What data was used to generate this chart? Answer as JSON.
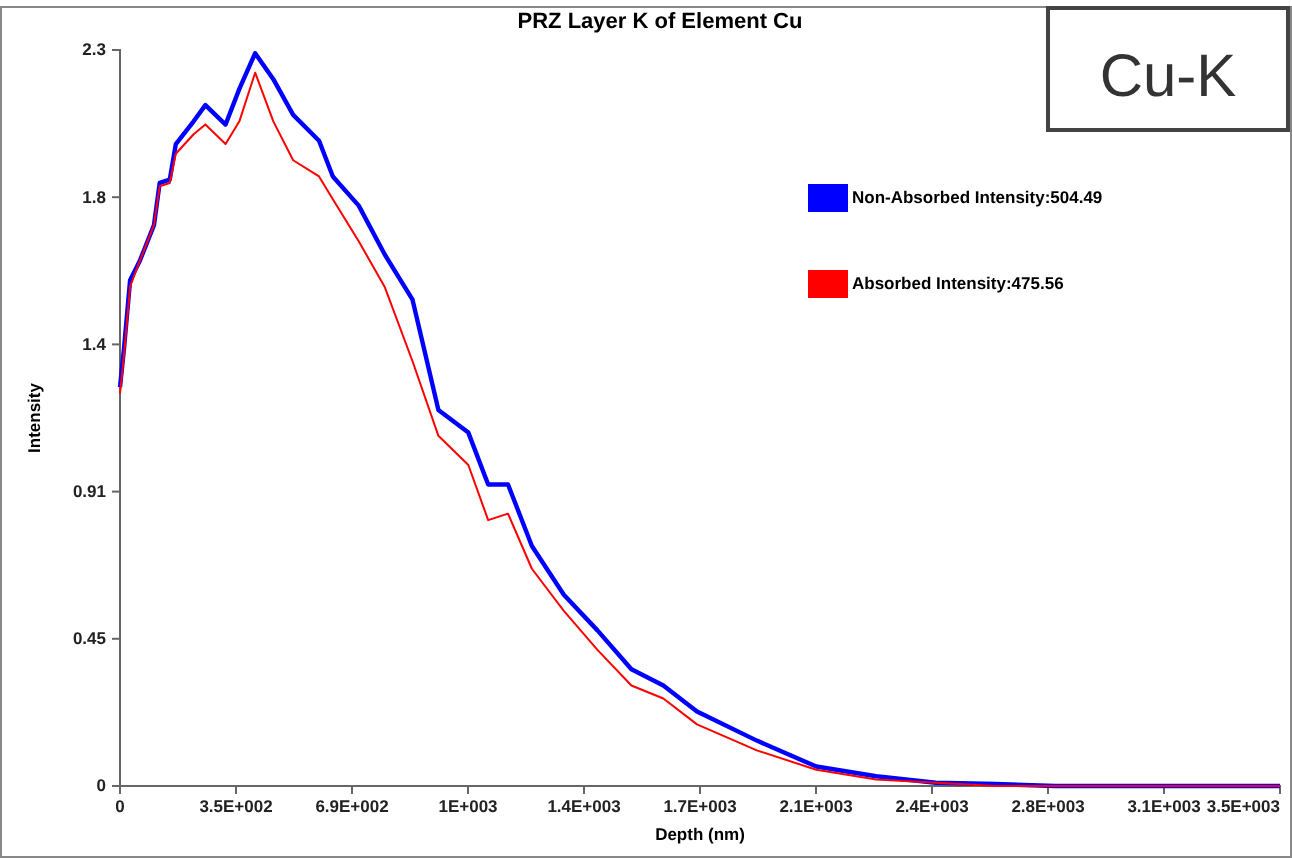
{
  "chart_data": {
    "type": "line",
    "title": "PRZ Layer K of Element Cu",
    "xlabel": "Depth (nm)",
    "ylabel": "Intensity",
    "x": [
      0,
      12,
      30,
      59,
      101,
      118,
      148,
      166,
      219,
      254,
      314,
      355,
      402,
      456,
      515,
      592,
      633,
      710,
      787,
      870,
      947,
      1036,
      1095,
      1154,
      1225,
      1320,
      1420,
      1521,
      1616,
      1716,
      1894,
      2071,
      2249,
      2426,
      2604,
      2781,
      3450
    ],
    "series": [
      {
        "name": "Non-Absorbed Intensity:504.49",
        "color": "#0000ff",
        "values": [
          1.23,
          1.35,
          1.56,
          1.62,
          1.73,
          1.86,
          1.87,
          1.98,
          2.05,
          2.1,
          2.04,
          2.15,
          2.26,
          2.18,
          2.07,
          1.99,
          1.88,
          1.79,
          1.64,
          1.5,
          1.16,
          1.09,
          0.93,
          0.93,
          0.74,
          0.59,
          0.48,
          0.36,
          0.31,
          0.23,
          0.14,
          0.06,
          0.03,
          0.01,
          0.006,
          0,
          0
        ]
      },
      {
        "name": "Absorbed Intensity:475.56",
        "color": "#ff0000",
        "values": [
          1.21,
          1.33,
          1.54,
          1.62,
          1.73,
          1.85,
          1.86,
          1.95,
          2.01,
          2.04,
          1.98,
          2.05,
          2.2,
          2.05,
          1.93,
          1.88,
          1.81,
          1.68,
          1.54,
          1.31,
          1.08,
          0.99,
          0.82,
          0.84,
          0.67,
          0.54,
          0.42,
          0.31,
          0.27,
          0.19,
          0.11,
          0.05,
          0.02,
          0.01,
          0,
          0,
          0
        ]
      }
    ],
    "xlim": [
      0,
      3450
    ],
    "xticks": [
      0,
      {
        "value": 345,
        "label": "3.5E+002"
      },
      {
        "value": 690,
        "label": "6.9E+002"
      },
      {
        "value": 1035,
        "label": "1E+003"
      },
      {
        "value": 1380,
        "label": "1.4E+003"
      },
      {
        "value": 1725,
        "label": "1.7E+003"
      },
      {
        "value": 2070,
        "label": "2.1E+003"
      },
      {
        "value": 2415,
        "label": "2.4E+003"
      },
      {
        "value": 2760,
        "label": "2.8E+003"
      },
      {
        "value": 3105,
        "label": "3.1E+003"
      },
      {
        "value": 3450,
        "label": "3.5E+003"
      }
    ],
    "ylim": [
      0,
      2.27
    ],
    "yticks": [
      0,
      {
        "value": 0.454,
        "label": "0.45"
      },
      {
        "value": 0.908,
        "label": "0.91"
      },
      {
        "value": 1.362,
        "label": "1.4"
      },
      {
        "value": 1.816,
        "label": "1.8"
      },
      {
        "value": 2.27,
        "label": "2.3"
      }
    ],
    "annotations": [
      "Cu-K"
    ],
    "legend": "top right",
    "grid": false,
    "marker": "none",
    "line_style": "solid"
  }
}
